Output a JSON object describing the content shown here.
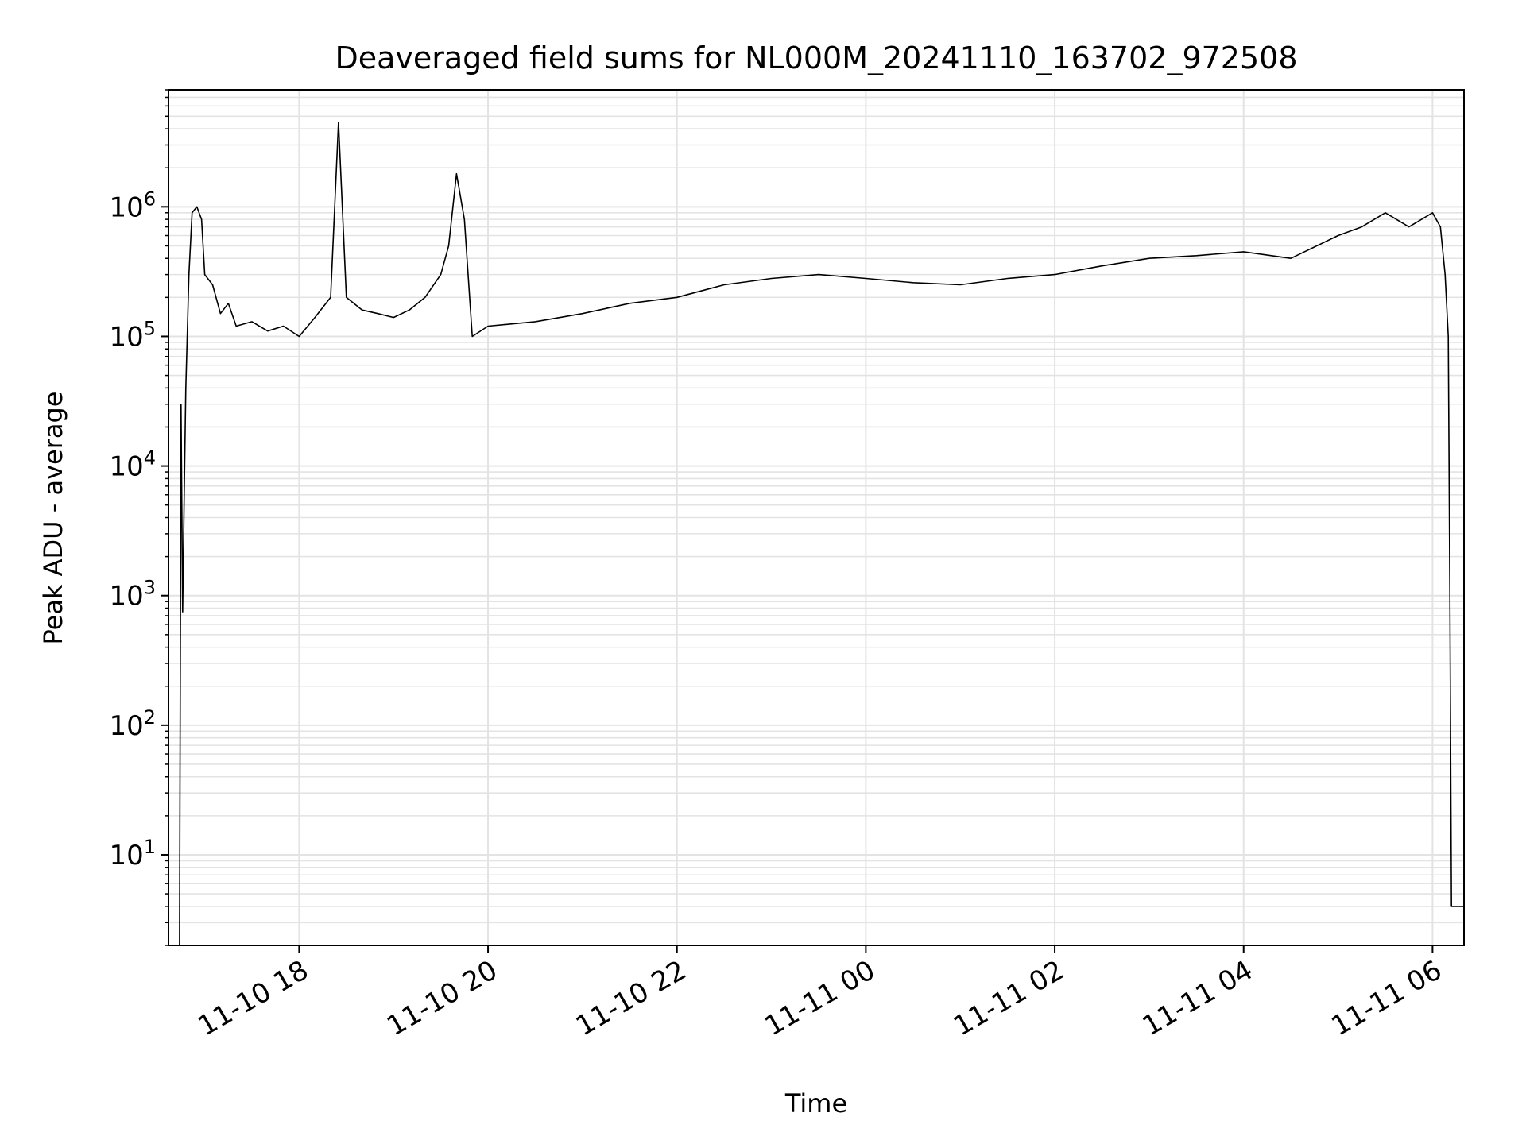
{
  "chart_data": {
    "type": "line",
    "title": "Deaveraged field sums for NL000M_20241110_163702_972508",
    "xlabel": "Time",
    "ylabel": "Peak ADU - average",
    "y_scale": "log",
    "ylim": [
      2,
      8000000
    ],
    "xlim": [
      "2024-11-10 16:37",
      "2024-11-11 06:20"
    ],
    "grid": true,
    "line_color": "#000000",
    "grid_color": "#e3e3e3",
    "x_ticks": [
      {
        "value": "2024-11-10 18:00",
        "label": "11-10 18"
      },
      {
        "value": "2024-11-10 20:00",
        "label": "11-10 20"
      },
      {
        "value": "2024-11-10 22:00",
        "label": "11-10 22"
      },
      {
        "value": "2024-11-11 00:00",
        "label": "11-11 00"
      },
      {
        "value": "2024-11-11 02:00",
        "label": "11-11 02"
      },
      {
        "value": "2024-11-11 04:00",
        "label": "11-11 04"
      },
      {
        "value": "2024-11-11 06:00",
        "label": "11-11 06"
      }
    ],
    "y_ticks": [
      {
        "value": 10,
        "base": "10",
        "exp": "1"
      },
      {
        "value": 100,
        "base": "10",
        "exp": "2"
      },
      {
        "value": 1000,
        "base": "10",
        "exp": "3"
      },
      {
        "value": 10000,
        "base": "10",
        "exp": "4"
      },
      {
        "value": 100000,
        "base": "10",
        "exp": "5"
      },
      {
        "value": 1000000,
        "base": "10",
        "exp": "6"
      }
    ],
    "series": [
      {
        "x": [
          "2024-11-10 16:44",
          "2024-11-10 16:45",
          "2024-11-10 16:46",
          "2024-11-10 16:47",
          "2024-11-10 16:48",
          "2024-11-10 16:50",
          "2024-11-10 16:52",
          "2024-11-10 16:55",
          "2024-11-10 16:58",
          "2024-11-10 17:00",
          "2024-11-10 17:05",
          "2024-11-10 17:10",
          "2024-11-10 17:15",
          "2024-11-10 17:20",
          "2024-11-10 17:30",
          "2024-11-10 17:40",
          "2024-11-10 17:50",
          "2024-11-10 18:00",
          "2024-11-10 18:10",
          "2024-11-10 18:20",
          "2024-11-10 18:25",
          "2024-11-10 18:30",
          "2024-11-10 18:40",
          "2024-11-10 18:50",
          "2024-11-10 19:00",
          "2024-11-10 19:10",
          "2024-11-10 19:20",
          "2024-11-10 19:30",
          "2024-11-10 19:35",
          "2024-11-10 19:40",
          "2024-11-10 19:45",
          "2024-11-10 19:50",
          "2024-11-10 20:00",
          "2024-11-10 20:30",
          "2024-11-10 21:00",
          "2024-11-10 21:30",
          "2024-11-10 22:00",
          "2024-11-10 22:30",
          "2024-11-10 23:00",
          "2024-11-10 23:30",
          "2024-11-11 00:00",
          "2024-11-11 00:30",
          "2024-11-11 01:00",
          "2024-11-11 01:30",
          "2024-11-11 02:00",
          "2024-11-11 02:30",
          "2024-11-11 03:00",
          "2024-11-11 03:30",
          "2024-11-11 04:00",
          "2024-11-11 04:30",
          "2024-11-11 05:00",
          "2024-11-11 05:15",
          "2024-11-11 05:30",
          "2024-11-11 05:45",
          "2024-11-11 06:00",
          "2024-11-11 06:05",
          "2024-11-11 06:08",
          "2024-11-11 06:10",
          "2024-11-11 06:11",
          "2024-11-11 06:12",
          "2024-11-11 06:20"
        ],
        "y": [
          2,
          30000,
          750,
          6000,
          40000,
          300000,
          900000,
          1000000,
          800000,
          300000,
          250000,
          150000,
          180000,
          120000,
          130000,
          110000,
          120000,
          100000,
          140000,
          200000,
          4500000,
          200000,
          160000,
          150000,
          140000,
          160000,
          200000,
          300000,
          500000,
          1800000,
          800000,
          100000,
          120000,
          130000,
          150000,
          180000,
          200000,
          250000,
          280000,
          300000,
          280000,
          260000,
          250000,
          280000,
          300000,
          350000,
          400000,
          420000,
          450000,
          400000,
          600000,
          700000,
          900000,
          700000,
          900000,
          700000,
          300000,
          100000,
          1000,
          4,
          4
        ]
      }
    ]
  }
}
